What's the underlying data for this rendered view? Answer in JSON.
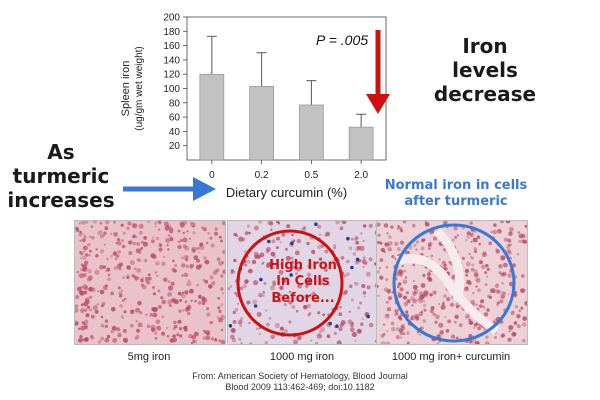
{
  "chart_data": {
    "type": "bar",
    "categories": [
      "0",
      "0.2",
      "0.5",
      "2.0"
    ],
    "values": [
      120,
      103,
      77,
      46
    ],
    "errors": [
      53,
      47,
      34,
      18
    ],
    "xlabel": "Dietary curcumin (%)",
    "ylabel": "Spleen iron",
    "ylabel_unit": "(ug/gm wet weight)",
    "yticks": [
      "20",
      "40",
      "60",
      "80",
      "100",
      "120",
      "140",
      "160",
      "180",
      "200"
    ],
    "ylim": [
      0,
      200
    ],
    "annotation": "P = .005",
    "bar_color": "#c2c2c2",
    "arrow_color": "#cc1111",
    "grid": false
  },
  "callouts": {
    "iron_levels": [
      "Iron",
      "levels",
      "decrease"
    ],
    "as_turmeric": [
      "As",
      "turmeric",
      "increases"
    ],
    "normal_iron": [
      "Normal iron in cells",
      "after turmeric"
    ],
    "high_iron": [
      "High Iron",
      "in Cells",
      "Before..."
    ]
  },
  "panels": [
    {
      "caption": "5mg iron",
      "tint": "#e9c2cc"
    },
    {
      "caption": "1000 mg iron",
      "tint": "#e2d6e6"
    },
    {
      "caption": "1000 mg iron+ curcumin",
      "tint": "#ecd2d8"
    }
  ],
  "citation": [
    "From: American Society of Hematology, Blood Journal",
    "Blood 2009 113:462-469; doi:10.1182"
  ],
  "colors": {
    "blue_arrow": "#3a78d6",
    "red_circle": "#cc1111",
    "blue_circle": "#3a78d6",
    "stain": "#b8475f"
  }
}
